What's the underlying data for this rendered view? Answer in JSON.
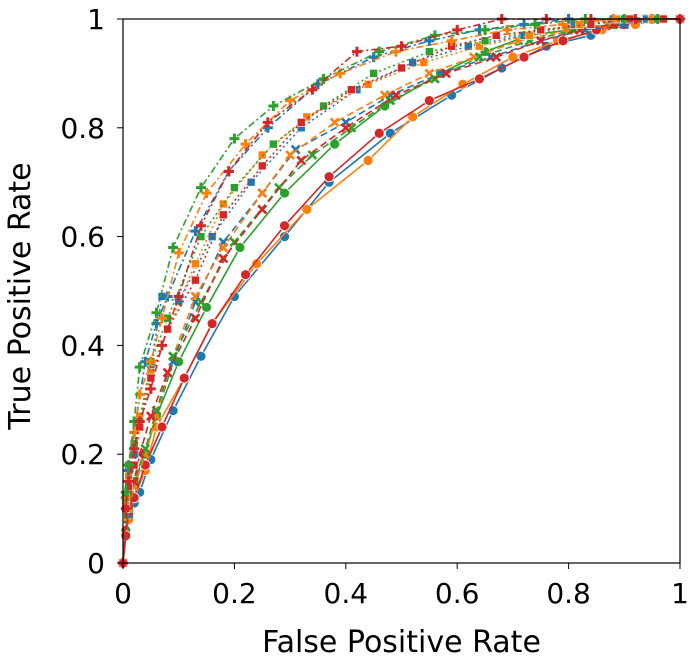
{
  "chart_data": {
    "type": "line",
    "xlabel": "False Positive Rate",
    "ylabel": "True Positive Rate",
    "xlim": [
      0,
      1
    ],
    "ylim": [
      0,
      1
    ],
    "x_ticks": [
      {
        "v": 0,
        "label": "0"
      },
      {
        "v": 0.2,
        "label": "0.2"
      },
      {
        "v": 0.4,
        "label": "0.4"
      },
      {
        "v": 0.6,
        "label": "0.6"
      },
      {
        "v": 0.8,
        "label": "0.8"
      },
      {
        "v": 1,
        "label": "1"
      }
    ],
    "y_ticks": [
      {
        "v": 0,
        "label": "0"
      },
      {
        "v": 0.2,
        "label": "0.2"
      },
      {
        "v": 0.4,
        "label": "0.4"
      },
      {
        "v": 0.6,
        "label": "0.6"
      },
      {
        "v": 0.8,
        "label": "0.8"
      },
      {
        "v": 1,
        "label": "1"
      }
    ],
    "grid": false,
    "legend": "none",
    "colors": {
      "blue": "#1f77b4",
      "orange": "#ff7f0e",
      "green": "#2ca02c",
      "red": "#d62728"
    },
    "series": [
      {
        "color": "#1f77b4",
        "marker": "circle",
        "line": "solid",
        "x": [
          0,
          0.005,
          0.01,
          0.02,
          0.03,
          0.05,
          0.09,
          0.14,
          0.2,
          0.29,
          0.37,
          0.48,
          0.59,
          0.68,
          0.76,
          0.84,
          0.9,
          0.95,
          1
        ],
        "y": [
          0,
          0.05,
          0.08,
          0.11,
          0.13,
          0.19,
          0.28,
          0.38,
          0.49,
          0.6,
          0.7,
          0.79,
          0.86,
          0.91,
          0.95,
          0.97,
          0.99,
          1,
          1
        ]
      },
      {
        "color": "#ff7f0e",
        "marker": "circle",
        "line": "solid",
        "x": [
          0,
          0.005,
          0.01,
          0.02,
          0.04,
          0.06,
          0.11,
          0.16,
          0.24,
          0.33,
          0.44,
          0.52,
          0.61,
          0.7,
          0.78,
          0.86,
          0.92,
          0.97,
          1
        ],
        "y": [
          0,
          0.05,
          0.08,
          0.12,
          0.17,
          0.25,
          0.34,
          0.44,
          0.55,
          0.65,
          0.74,
          0.82,
          0.88,
          0.93,
          0.96,
          0.98,
          0.99,
          1,
          1
        ]
      },
      {
        "color": "#2ca02c",
        "marker": "circle",
        "line": "solid",
        "x": [
          0,
          0.005,
          0.01,
          0.02,
          0.04,
          0.06,
          0.1,
          0.15,
          0.21,
          0.29,
          0.38,
          0.47,
          0.57,
          0.65,
          0.73,
          0.8,
          0.88,
          0.94,
          1
        ],
        "y": [
          0,
          0.06,
          0.1,
          0.15,
          0.2,
          0.27,
          0.37,
          0.47,
          0.58,
          0.68,
          0.77,
          0.84,
          0.9,
          0.94,
          0.97,
          0.98,
          0.99,
          1,
          1
        ]
      },
      {
        "color": "#d62728",
        "marker": "circle",
        "line": "solid",
        "x": [
          0,
          0.005,
          0.01,
          0.02,
          0.04,
          0.07,
          0.11,
          0.16,
          0.22,
          0.29,
          0.37,
          0.46,
          0.55,
          0.64,
          0.72,
          0.79,
          0.85,
          0.9,
          0.95,
          1
        ],
        "y": [
          0,
          0.05,
          0.09,
          0.12,
          0.18,
          0.25,
          0.34,
          0.44,
          0.53,
          0.62,
          0.71,
          0.79,
          0.85,
          0.89,
          0.93,
          0.96,
          0.98,
          0.99,
          1,
          1
        ]
      },
      {
        "color": "#1f77b4",
        "marker": "x",
        "line": "dashed",
        "x": [
          0,
          0.01,
          0.02,
          0.04,
          0.06,
          0.09,
          0.13,
          0.18,
          0.25,
          0.31,
          0.4,
          0.48,
          0.57,
          0.66,
          0.75,
          0.83,
          0.9,
          0.96,
          1
        ],
        "y": [
          0,
          0.09,
          0.14,
          0.2,
          0.27,
          0.37,
          0.48,
          0.59,
          0.68,
          0.76,
          0.81,
          0.86,
          0.9,
          0.93,
          0.96,
          0.98,
          0.99,
          1,
          1
        ]
      },
      {
        "color": "#ff7f0e",
        "marker": "x",
        "line": "dashed",
        "x": [
          0,
          0.01,
          0.02,
          0.04,
          0.06,
          0.09,
          0.13,
          0.18,
          0.25,
          0.3,
          0.38,
          0.47,
          0.55,
          0.63,
          0.71,
          0.8,
          0.87,
          0.94,
          1
        ],
        "y": [
          0,
          0.1,
          0.14,
          0.2,
          0.27,
          0.38,
          0.49,
          0.58,
          0.68,
          0.75,
          0.81,
          0.86,
          0.9,
          0.93,
          0.96,
          0.98,
          0.99,
          1,
          1
        ]
      },
      {
        "color": "#2ca02c",
        "marker": "x",
        "line": "dashed",
        "x": [
          0,
          0.01,
          0.02,
          0.04,
          0.06,
          0.09,
          0.14,
          0.2,
          0.28,
          0.34,
          0.41,
          0.48,
          0.56,
          0.64,
          0.73,
          0.81,
          0.88,
          0.95,
          1
        ],
        "y": [
          0,
          0.11,
          0.15,
          0.21,
          0.28,
          0.38,
          0.48,
          0.59,
          0.69,
          0.75,
          0.8,
          0.85,
          0.89,
          0.93,
          0.96,
          0.98,
          0.99,
          1,
          1
        ]
      },
      {
        "color": "#d62728",
        "marker": "x",
        "line": "dashed",
        "x": [
          0,
          0.01,
          0.02,
          0.03,
          0.05,
          0.08,
          0.13,
          0.18,
          0.25,
          0.32,
          0.4,
          0.49,
          0.58,
          0.67,
          0.75,
          0.82,
          0.88,
          0.94,
          1
        ],
        "y": [
          0,
          0.11,
          0.15,
          0.2,
          0.27,
          0.35,
          0.45,
          0.56,
          0.65,
          0.74,
          0.8,
          0.86,
          0.9,
          0.93,
          0.96,
          0.98,
          0.99,
          1,
          1
        ]
      },
      {
        "color": "#1f77b4",
        "marker": "square",
        "line": "dotted",
        "x": [
          0,
          0.005,
          0.01,
          0.02,
          0.03,
          0.05,
          0.07,
          0.1,
          0.16,
          0.23,
          0.32,
          0.42,
          0.52,
          0.62,
          0.72,
          0.81,
          0.88,
          0.94,
          1
        ],
        "y": [
          0,
          0.1,
          0.15,
          0.2,
          0.26,
          0.36,
          0.49,
          0.48,
          0.6,
          0.7,
          0.8,
          0.87,
          0.92,
          0.95,
          0.97,
          0.99,
          1,
          1,
          1
        ]
      },
      {
        "color": "#ff7f0e",
        "marker": "square",
        "line": "dotted",
        "x": [
          0,
          0.005,
          0.01,
          0.02,
          0.03,
          0.05,
          0.08,
          0.13,
          0.18,
          0.25,
          0.33,
          0.44,
          0.54,
          0.64,
          0.73,
          0.82,
          0.89,
          0.95,
          1
        ],
        "y": [
          0,
          0.11,
          0.16,
          0.22,
          0.27,
          0.35,
          0.43,
          0.55,
          0.66,
          0.75,
          0.82,
          0.88,
          0.92,
          0.95,
          0.97,
          0.99,
          1,
          1,
          1
        ]
      },
      {
        "color": "#2ca02c",
        "marker": "square",
        "line": "dotted",
        "x": [
          0,
          0.005,
          0.01,
          0.02,
          0.03,
          0.05,
          0.08,
          0.14,
          0.2,
          0.27,
          0.36,
          0.45,
          0.55,
          0.65,
          0.75,
          0.84,
          0.9,
          0.96,
          1
        ],
        "y": [
          0,
          0.12,
          0.18,
          0.22,
          0.26,
          0.37,
          0.45,
          0.6,
          0.69,
          0.77,
          0.84,
          0.9,
          0.94,
          0.96,
          0.98,
          0.99,
          1,
          1,
          1
        ]
      },
      {
        "color": "#d62728",
        "marker": "square",
        "line": "dotted",
        "x": [
          0,
          0.005,
          0.01,
          0.02,
          0.03,
          0.05,
          0.08,
          0.13,
          0.18,
          0.25,
          0.32,
          0.41,
          0.5,
          0.59,
          0.67,
          0.75,
          0.84,
          0.91,
          0.97,
          1
        ],
        "y": [
          0,
          0.1,
          0.14,
          0.18,
          0.25,
          0.34,
          0.43,
          0.52,
          0.64,
          0.73,
          0.81,
          0.87,
          0.91,
          0.95,
          0.97,
          0.98,
          0.99,
          1,
          1,
          1
        ]
      },
      {
        "color": "#1f77b4",
        "marker": "plus",
        "line": "dashdot",
        "x": [
          0,
          0.005,
          0.01,
          0.02,
          0.04,
          0.06,
          0.08,
          0.13,
          0.19,
          0.26,
          0.35,
          0.45,
          0.55,
          0.64,
          0.72,
          0.8,
          0.88,
          0.95,
          1
        ],
        "y": [
          0,
          0.12,
          0.17,
          0.24,
          0.37,
          0.44,
          0.49,
          0.61,
          0.72,
          0.8,
          0.88,
          0.93,
          0.96,
          0.98,
          0.99,
          1,
          1,
          1,
          1
        ]
      },
      {
        "color": "#ff7f0e",
        "marker": "plus",
        "line": "dashdot",
        "x": [
          0,
          0.005,
          0.01,
          0.02,
          0.03,
          0.05,
          0.07,
          0.1,
          0.15,
          0.22,
          0.3,
          0.39,
          0.49,
          0.59,
          0.69,
          0.79,
          0.88,
          0.95,
          1
        ],
        "y": [
          0,
          0.12,
          0.18,
          0.24,
          0.31,
          0.37,
          0.45,
          0.57,
          0.68,
          0.77,
          0.85,
          0.9,
          0.94,
          0.96,
          0.98,
          0.99,
          1,
          1,
          1
        ]
      },
      {
        "color": "#2ca02c",
        "marker": "plus",
        "line": "dashdot",
        "x": [
          0,
          0.005,
          0.01,
          0.02,
          0.03,
          0.06,
          0.09,
          0.14,
          0.2,
          0.27,
          0.36,
          0.46,
          0.56,
          0.65,
          0.74,
          0.83,
          0.9,
          0.96,
          1
        ],
        "y": [
          0,
          0.13,
          0.18,
          0.26,
          0.36,
          0.46,
          0.58,
          0.69,
          0.78,
          0.84,
          0.89,
          0.94,
          0.97,
          0.98,
          0.99,
          1,
          1,
          1,
          1
        ]
      },
      {
        "color": "#d62728",
        "marker": "plus",
        "line": "dashdot",
        "x": [
          0,
          0.005,
          0.01,
          0.02,
          0.03,
          0.05,
          0.07,
          0.1,
          0.14,
          0.19,
          0.26,
          0.34,
          0.42,
          0.5,
          0.6,
          0.68,
          0.76,
          0.84,
          0.92,
          1
        ],
        "y": [
          0,
          0.1,
          0.15,
          0.21,
          0.26,
          0.32,
          0.4,
          0.49,
          0.62,
          0.72,
          0.81,
          0.87,
          0.94,
          0.95,
          0.98,
          1,
          1,
          1,
          1,
          1
        ]
      }
    ]
  }
}
